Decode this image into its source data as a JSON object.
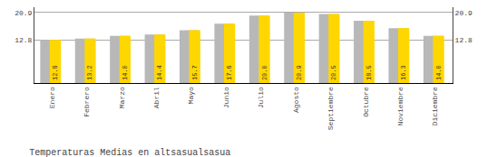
{
  "chart_data": {
    "type": "bar",
    "title": "Temperaturas Medias en altsasualsasua",
    "categories": [
      "Enero",
      "Febrero",
      "Marzo",
      "Abril",
      "Mayo",
      "Junio",
      "Julio",
      "Agosto",
      "Septiembre",
      "Octubre",
      "Noviembre",
      "Diciembre"
    ],
    "series": [
      {
        "color": "#B8B8B8",
        "values": [
          12.8,
          13.2,
          14.0,
          14.4,
          15.7,
          17.6,
          20.0,
          20.9,
          20.5,
          18.5,
          16.3,
          14.0
        ]
      },
      {
        "color": "#FFD700",
        "values": [
          12.8,
          13.2,
          14.0,
          14.4,
          15.7,
          17.6,
          20.0,
          20.9,
          20.5,
          18.5,
          16.3,
          14.0
        ],
        "value_labels": [
          "12.8",
          "13.2",
          "14.0",
          "14.4",
          "15.7",
          "17.6",
          "20.0",
          "20.9",
          "20.5",
          "18.5",
          "16.3",
          "14.0"
        ]
      }
    ],
    "ylim": [
      0,
      22.5
    ],
    "yticks": [
      12.8,
      20.9
    ],
    "y2lim": [
      0,
      22.5
    ],
    "y2ticks": [
      12.8,
      20.9
    ],
    "grid": true,
    "data_labels": true
  }
}
